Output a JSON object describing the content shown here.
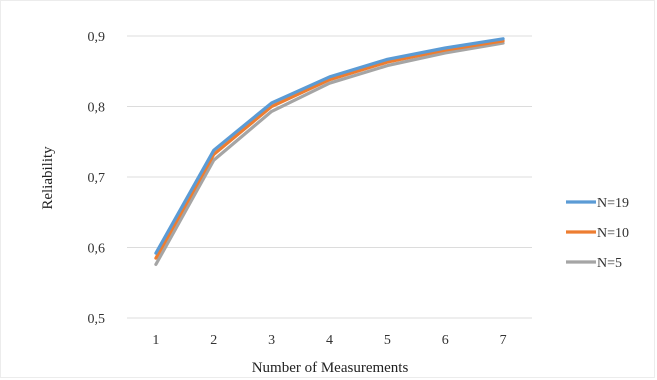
{
  "chart_data": {
    "type": "line",
    "title": "",
    "xlabel": "Number of Measurements",
    "ylabel": "Reliability",
    "x": [
      1,
      2,
      3,
      4,
      5,
      6,
      7
    ],
    "x_tick_labels": [
      "1",
      "2",
      "3",
      "4",
      "5",
      "6",
      "7"
    ],
    "ylim": [
      0.5,
      0.9
    ],
    "y_ticks": [
      0.5,
      0.6,
      0.7,
      0.8,
      0.9
    ],
    "y_tick_labels": [
      "0,5",
      "0,6",
      "0,7",
      "0,8",
      "0,9"
    ],
    "grid": "horizontal",
    "legend_position": "right",
    "series": [
      {
        "name": "N=19",
        "color": "#5b9bd5",
        "values": [
          0.592,
          0.738,
          0.805,
          0.842,
          0.867,
          0.883,
          0.896
        ]
      },
      {
        "name": "N=10",
        "color": "#ed7d31",
        "values": [
          0.585,
          0.732,
          0.8,
          0.838,
          0.863,
          0.88,
          0.893
        ]
      },
      {
        "name": "N=5",
        "color": "#a5a5a5",
        "values": [
          0.576,
          0.724,
          0.793,
          0.833,
          0.858,
          0.876,
          0.89
        ]
      }
    ]
  }
}
